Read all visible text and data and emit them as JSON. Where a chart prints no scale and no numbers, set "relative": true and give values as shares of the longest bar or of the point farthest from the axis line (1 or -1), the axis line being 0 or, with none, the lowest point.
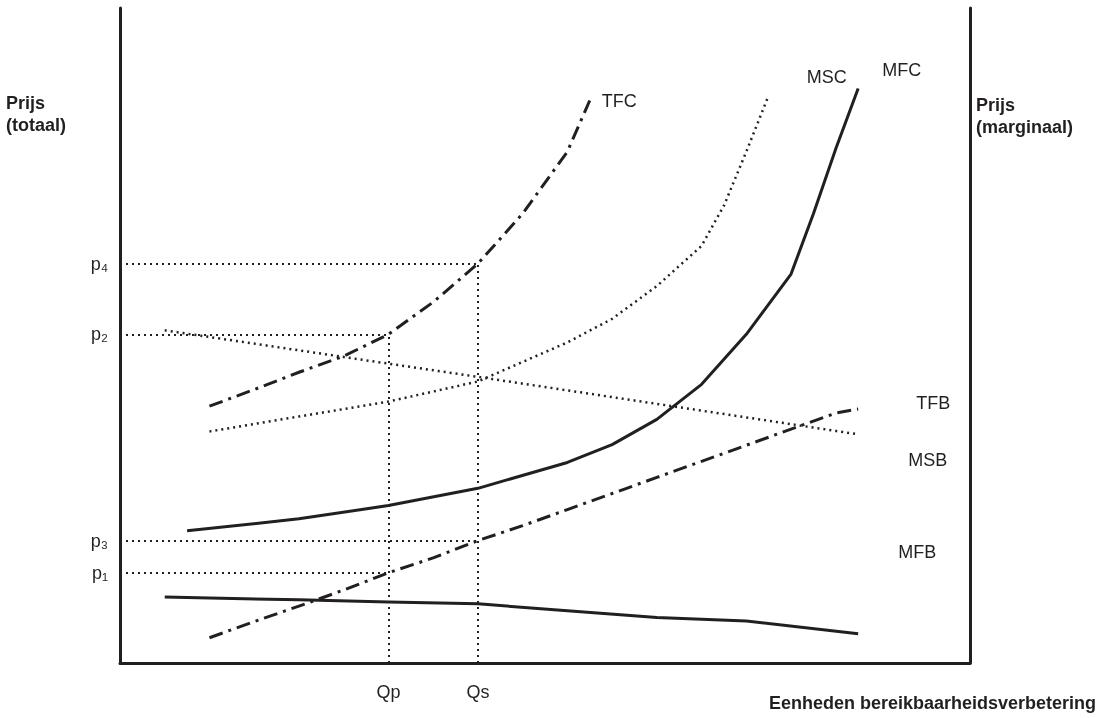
{
  "chart_data": {
    "type": "line",
    "relative": true,
    "xlabel": "Eenheden bereikbaarheidsverbetering",
    "ylabel": "Prijs (totaal)",
    "y2label": "Prijs (marginaal)",
    "legend": false,
    "grid": false,
    "marker": "none",
    "categories": [
      null,
      null,
      null,
      null,
      null,
      null,
      null,
      null,
      null,
      null,
      null,
      null,
      "Qp",
      null,
      null,
      null,
      "Qs",
      null,
      null,
      null,
      null,
      null,
      null,
      null,
      null,
      null,
      null,
      null,
      null,
      null,
      null,
      null,
      null,
      null,
      null,
      null,
      null,
      null,
      null
    ],
    "series": [
      {
        "name": "TFC",
        "color": "#231f20",
        "line_style": "dashed",
        "values": [
          null,
          null,
          null,
          null,
          0.447,
          null,
          0.476,
          null,
          0.506,
          null,
          0.534,
          null,
          0.572,
          null,
          0.628,
          null,
          0.695,
          null,
          0.782,
          null,
          0.89,
          0.979,
          null,
          null,
          null,
          null,
          null,
          null,
          null,
          null,
          null,
          null,
          null,
          null,
          null,
          null,
          null,
          null,
          null
        ]
      },
      {
        "name": "MSC",
        "color": "#231f20",
        "line_style": "dotted",
        "values": [
          null,
          null,
          null,
          null,
          0.403,
          null,
          null,
          null,
          0.429,
          null,
          null,
          null,
          0.455,
          null,
          null,
          null,
          0.49,
          null,
          null,
          null,
          0.558,
          null,
          0.599,
          null,
          0.656,
          null,
          0.726,
          0.796,
          0.89,
          0.988,
          null,
          null,
          null,
          null,
          null,
          null,
          null,
          null,
          null
        ]
      },
      {
        "name": "MFC",
        "color": "#231f20",
        "line_style": "solid",
        "values": [
          null,
          null,
          null,
          0.23,
          null,
          null,
          null,
          null,
          0.251,
          null,
          null,
          null,
          0.274,
          null,
          null,
          null,
          0.304,
          null,
          null,
          null,
          0.349,
          null,
          0.38,
          null,
          0.424,
          null,
          0.485,
          null,
          0.572,
          null,
          0.677,
          0.782,
          0.895,
          1,
          null,
          null,
          null,
          null,
          null
        ]
      },
      {
        "name": "TFB",
        "color": "#231f20",
        "line_style": "dashed",
        "values": [
          null,
          null,
          null,
          null,
          0.044,
          null,
          0.072,
          null,
          0.099,
          null,
          0.127,
          null,
          0.157,
          null,
          0.183,
          null,
          0.213,
          null,
          0.239,
          null,
          0.267,
          null,
          0.295,
          null,
          0.323,
          null,
          0.351,
          null,
          0.379,
          null,
          0.407,
          null,
          0.435,
          0.442,
          null,
          null,
          null,
          null,
          null
        ]
      },
      {
        "name": "MSB",
        "color": "#231f20",
        "line_style": "dotted",
        "values": [
          null,
          null,
          0.579,
          null,
          null,
          null,
          null,
          null,
          null,
          null,
          null,
          null,
          0.521,
          null,
          null,
          null,
          0.498,
          null,
          null,
          null,
          null,
          null,
          null,
          null,
          0.451,
          null,
          null,
          null,
          null,
          null,
          null,
          null,
          null,
          0.398,
          null,
          null,
          null,
          null,
          null
        ]
      },
      {
        "name": "MFB",
        "color": "#231f20",
        "line_style": "solid",
        "values": [
          null,
          null,
          0.115,
          null,
          0.113,
          null,
          null,
          null,
          0.11,
          null,
          null,
          null,
          0.106,
          null,
          null,
          null,
          0.103,
          null,
          null,
          null,
          0.091,
          null,
          null,
          null,
          0.079,
          null,
          null,
          null,
          0.073,
          null,
          null,
          null,
          null,
          0.051,
          null,
          null,
          null,
          null,
          null
        ]
      }
    ],
    "ref_lines": [
      {
        "axis": "y",
        "value": 0.695,
        "label": "p₄",
        "line_style": "dotted",
        "color": "#231f20"
      },
      {
        "axis": "y",
        "value": 0.572,
        "label": "p₂",
        "line_style": "dotted",
        "color": "#231f20"
      },
      {
        "axis": "y",
        "value": 0.213,
        "label": "p₃",
        "line_style": "dotted",
        "color": "#231f20"
      },
      {
        "axis": "y",
        "value": 0.157,
        "label": "p₁",
        "line_style": "dotted",
        "color": "#231f20"
      },
      {
        "axis": "x",
        "value": "Qp",
        "line_style": "dotted",
        "color": "#231f20"
      },
      {
        "axis": "x",
        "value": "Qs",
        "line_style": "dotted",
        "color": "#231f20"
      }
    ]
  }
}
